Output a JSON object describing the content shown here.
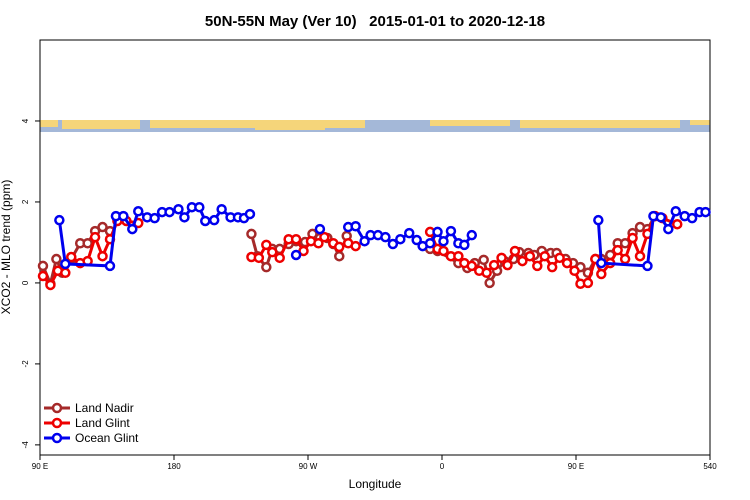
{
  "chart_data": {
    "type": "line",
    "title": "50N-55N May (Ver 10)   2015-01-01 to 2020-12-18",
    "x_label": "Longitude",
    "y_label": "XCO2 - MLO trend (ppm)",
    "xlim": [
      90,
      540
    ],
    "xticks": [
      {
        "value": 90,
        "label": "90 E"
      },
      180,
      {
        "value": 270,
        "label": "90 W"
      },
      {
        "value": 360,
        "label": "0"
      },
      {
        "value": 450,
        "label": "90 E"
      },
      540
    ],
    "ylim": [
      -4.25,
      6
    ],
    "yticks": [
      -4,
      -2,
      0,
      2,
      4
    ],
    "legend": "lower left",
    "series": [
      {
        "name": "Land Nadir",
        "color": "#a52a2a",
        "x": [
          92,
          97,
          101,
          105,
          111,
          117,
          122,
          127,
          132,
          137,
          null,
          232,
          236,
          242,
          246,
          251,
          257,
          262,
          268,
          273,
          278,
          283,
          287,
          291,
          296,
          null,
          352,
          357,
          371,
          377,
          382,
          388,
          392,
          397,
          402,
          408,
          412,
          418,
          422,
          427,
          433,
          437,
          443,
          448,
          453,
          458,
          463,
          467,
          473,
          478,
          483,
          488,
          493,
          498,
          503
        ],
        "values": [
          0.42,
          -0.02,
          0.59,
          0.25,
          0.59,
          0.98,
          0.98,
          1.28,
          1.38,
          1.28,
          null,
          1.21,
          0.66,
          0.39,
          0.84,
          0.84,
          0.96,
          1.03,
          1.01,
          1.21,
          1.11,
          1.11,
          0.96,
          0.66,
          1.16,
          null,
          0.84,
          0.79,
          0.49,
          0.37,
          0.49,
          0.57,
          0.0,
          0.3,
          0.54,
          0.59,
          0.76,
          0.74,
          0.69,
          0.79,
          0.74,
          0.74,
          0.59,
          0.49,
          0.39,
          0.25,
          0.59,
          0.59,
          0.69,
          0.98,
          0.98,
          1.23,
          1.38,
          1.33,
          1.65
        ]
      },
      {
        "name": "Land Glint",
        "color": "#ee0000",
        "x": [
          92,
          97,
          102,
          107,
          111,
          117,
          122,
          127,
          132,
          137,
          142,
          148,
          156,
          null,
          232,
          237,
          242,
          246,
          251,
          257,
          262,
          267,
          272,
          277,
          281,
          287,
          291,
          297,
          302,
          null,
          352,
          357,
          361,
          366,
          371,
          375,
          380,
          385,
          390,
          395,
          400,
          404,
          409,
          414,
          419,
          424,
          429,
          434,
          439,
          444,
          449,
          453,
          458,
          463,
          467,
          473,
          478,
          483,
          488,
          493,
          498,
          503,
          508,
          518
        ],
        "values": [
          0.17,
          -0.05,
          0.3,
          0.25,
          0.64,
          0.49,
          0.54,
          1.13,
          0.66,
          1.08,
          1.53,
          1.53,
          1.48,
          null,
          0.64,
          0.62,
          0.94,
          0.76,
          0.62,
          1.08,
          1.08,
          0.79,
          1.03,
          0.98,
          1.13,
          0.98,
          0.89,
          0.98,
          0.91,
          null,
          1.26,
          0.84,
          0.79,
          0.66,
          0.66,
          0.49,
          0.42,
          0.3,
          0.25,
          0.44,
          0.62,
          0.44,
          0.79,
          0.54,
          0.66,
          0.42,
          0.66,
          0.39,
          0.62,
          0.49,
          0.3,
          -0.02,
          0.0,
          0.59,
          0.22,
          0.49,
          0.81,
          0.59,
          1.11,
          0.66,
          1.21,
          1.65,
          1.6,
          1.45
        ]
      },
      {
        "name": "Ocean Glint",
        "color": "#0000ee",
        "x": [
          103,
          107,
          137,
          141,
          146,
          152,
          156,
          162,
          167,
          172,
          177,
          183,
          187,
          192,
          197,
          201,
          207,
          212,
          218,
          223,
          227,
          231,
          null,
          262,
          null,
          278,
          null,
          297,
          302,
          308,
          312,
          317,
          322,
          327,
          332,
          338,
          343,
          347,
          352,
          357,
          361,
          366,
          371,
          375,
          380,
          null,
          465,
          467,
          498,
          502,
          507,
          512,
          517,
          523,
          528,
          533,
          537
        ],
        "values": [
          1.55,
          0.47,
          0.42,
          1.65,
          1.65,
          1.33,
          1.77,
          1.62,
          1.6,
          1.75,
          1.75,
          1.82,
          1.62,
          1.87,
          1.87,
          1.53,
          1.55,
          1.82,
          1.62,
          1.62,
          1.6,
          1.7,
          null,
          0.69,
          null,
          1.33,
          null,
          1.38,
          1.4,
          1.03,
          1.18,
          1.18,
          1.13,
          0.96,
          1.08,
          1.23,
          1.06,
          0.91,
          0.98,
          1.26,
          1.03,
          1.28,
          0.98,
          0.94,
          1.18,
          null,
          1.55,
          0.49,
          0.42,
          1.65,
          1.62,
          1.33,
          1.77,
          1.65,
          1.6,
          1.75,
          1.75
        ]
      }
    ]
  }
}
